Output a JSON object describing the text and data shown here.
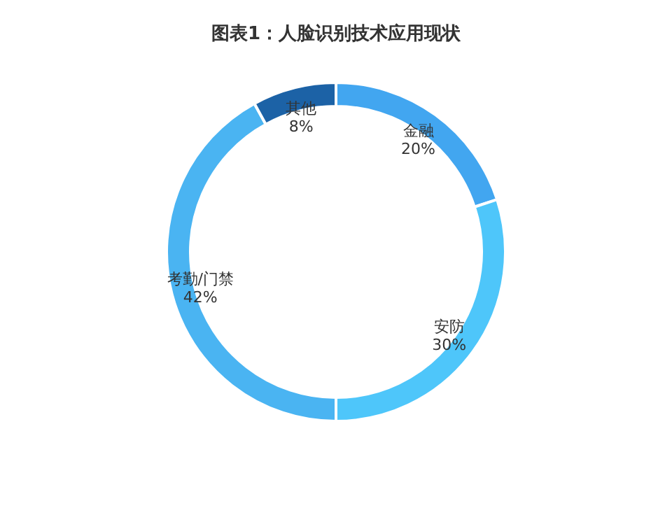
{
  "chart_data": {
    "type": "donut",
    "title": "图表1：人脸识别技术应用现状",
    "categories": [
      "金融",
      "安防",
      "考勤/门禁",
      "其他"
    ],
    "values": [
      20,
      30,
      42,
      8
    ],
    "value_labels": [
      "20%",
      "30%",
      "42%",
      "8%"
    ],
    "colors": [
      "#42a6f0",
      "#4ec6fa",
      "#4ab4f2",
      "#1c62a6"
    ],
    "legend": false
  }
}
